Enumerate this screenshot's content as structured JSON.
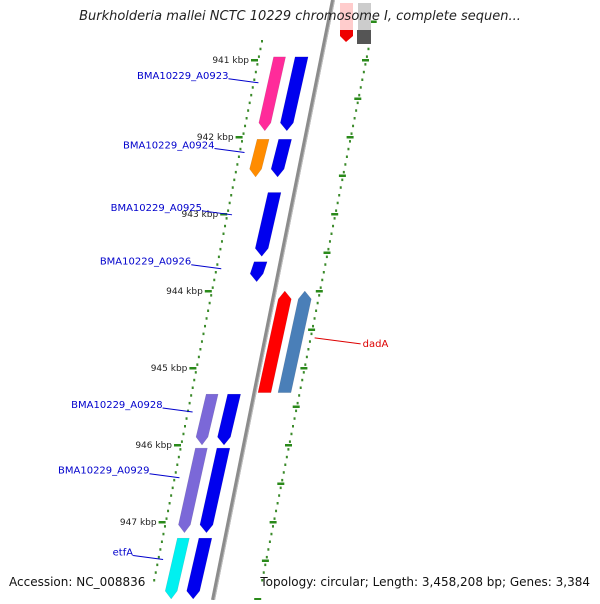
{
  "title": "Burkholderia mallei NCTC 10229 chromosome I, complete sequen...",
  "footer": {
    "accession": "Accession: NC_008836",
    "topology": "Topology: circular; Length: 3,458,208 bp; Genes: 3,384"
  },
  "ticks": [
    {
      "label": "941 kbp",
      "kbp": 941
    },
    {
      "label": "942 kbp",
      "kbp": 942
    },
    {
      "label": "943 kbp",
      "kbp": 943
    },
    {
      "label": "944 kbp",
      "kbp": 944
    },
    {
      "label": "945 kbp",
      "kbp": 945
    },
    {
      "label": "946 kbp",
      "kbp": 946
    },
    {
      "label": "947 kbp",
      "kbp": 947
    }
  ],
  "genes": [
    {
      "label": "BMA10229_A0923",
      "label_color": "#0000cc",
      "strand": "+",
      "start_kbp": 940.96,
      "end_kbp": 941.92,
      "color": "#0000ee",
      "cds_color": "#ff2b9a"
    },
    {
      "label": "BMA10229_A0924",
      "label_color": "#0000cc",
      "strand": "+",
      "start_kbp": 942.03,
      "end_kbp": 942.52,
      "color": "#0000ee",
      "cds_color": "#ff8c00"
    },
    {
      "label": "BMA10229_A0925",
      "label_color": "#0000cc",
      "strand": "+",
      "start_kbp": 942.72,
      "end_kbp": 943.55,
      "color": "#0000ee",
      "cds_color": null
    },
    {
      "label": "BMA10229_A0926",
      "label_color": "#0000cc",
      "strand": "+",
      "start_kbp": 943.62,
      "end_kbp": 943.88,
      "color": "#0000ee",
      "cds_color": null
    },
    {
      "label": "dadA",
      "label_color": "#dd0000",
      "strand": "-",
      "start_kbp": 944.0,
      "end_kbp": 945.32,
      "color": "#4a7fb8",
      "cds_color": "#ff0000"
    },
    {
      "label": "BMA10229_A0928",
      "label_color": "#0000cc",
      "strand": "+",
      "start_kbp": 945.34,
      "end_kbp": 946.0,
      "color": "#0000ee",
      "cds_color": "#7b68d8"
    },
    {
      "label": "BMA10229_A0929",
      "label_color": "#0000cc",
      "strand": "+",
      "start_kbp": 946.04,
      "end_kbp": 947.14,
      "color": "#0000ee",
      "cds_color": "#7b68d8"
    },
    {
      "label": "etfA",
      "label_color": "#0000cc",
      "strand": "+",
      "start_kbp": 947.21,
      "end_kbp": 948.0,
      "color": "#0000ee",
      "cds_color": "#00f0f0"
    }
  ],
  "top_partial_genes": [
    {
      "strand": "-",
      "color": "#ffcccc",
      "cds_color": "#ee0000"
    },
    {
      "strand": "-",
      "color": "#cccccc",
      "cds_color": "#555555"
    }
  ]
}
